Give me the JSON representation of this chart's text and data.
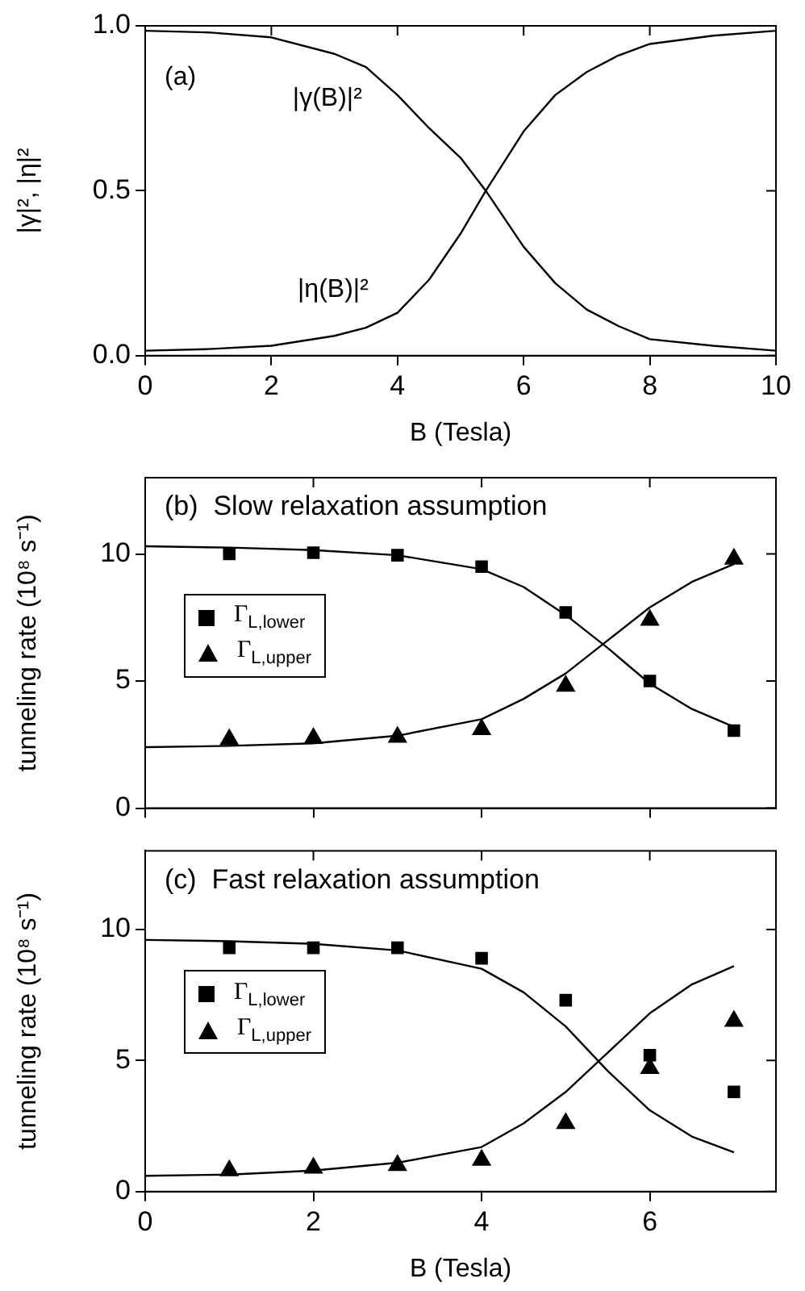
{
  "chart_data": [
    {
      "type": "line",
      "xlabel": "B (Tesla)",
      "ylabel": "|γ|², |η|²",
      "annotations": [
        "(a)"
      ],
      "xlim": [
        0,
        10
      ],
      "ylim": [
        0,
        1
      ],
      "xticks": [
        0,
        2,
        4,
        6,
        8,
        10
      ],
      "yticks": [
        {
          "value": 0,
          "label": "0.0"
        },
        0.5,
        {
          "value": 1,
          "label": "1.0"
        }
      ],
      "grid": false,
      "marker": "none",
      "line_style": "solid",
      "x": [
        0,
        1,
        2,
        3,
        3.5,
        4,
        4.5,
        5,
        5.4,
        6,
        6.5,
        7,
        7.5,
        8,
        9,
        10
      ],
      "series": [
        {
          "name": "|γ(B)|²",
          "color": "#000000",
          "values": [
            0.985,
            0.98,
            0.965,
            0.915,
            0.875,
            0.79,
            0.69,
            0.6,
            0.5,
            0.33,
            0.22,
            0.14,
            0.09,
            0.05,
            0.03,
            0.015
          ]
        },
        {
          "name": "|η(B)|²",
          "color": "#000000",
          "values": [
            0.015,
            0.02,
            0.03,
            0.06,
            0.085,
            0.13,
            0.23,
            0.37,
            0.5,
            0.68,
            0.79,
            0.86,
            0.91,
            0.945,
            0.97,
            0.985
          ]
        }
      ]
    },
    {
      "type": "scatter",
      "title": "(b)  Slow relaxation assumption",
      "ylabel": "tunneling rate (10⁸ s⁻¹)",
      "xlim": [
        0,
        7.5
      ],
      "ylim": [
        0,
        13
      ],
      "xticks": [
        0,
        2,
        4,
        6
      ],
      "yticks": [
        0,
        5,
        10
      ],
      "tick_labels": "y",
      "grid": false,
      "legend": "left",
      "series": [
        {
          "name": "Γ$_{L,lower}$",
          "color": "#000000",
          "marker": "square",
          "x": [
            1,
            2,
            3,
            4,
            5,
            6,
            7
          ],
          "values": [
            10,
            10.05,
            9.95,
            9.5,
            7.7,
            5.0,
            3.05
          ]
        },
        {
          "name": "Γ$_{L,upper}$",
          "color": "#000000",
          "marker": "triangle",
          "x": [
            1,
            2,
            3,
            4,
            5,
            6,
            7
          ],
          "values": [
            2.7,
            2.75,
            2.8,
            3.1,
            4.8,
            7.4,
            9.8
          ]
        },
        {
          "type": "line",
          "color": "#000000",
          "line_style": "solid",
          "x": [
            0,
            1,
            2,
            3,
            4,
            4.5,
            5,
            5.5,
            6,
            6.5,
            7
          ],
          "values": [
            10.3,
            10.25,
            10.15,
            9.95,
            9.4,
            8.7,
            7.6,
            6.3,
            4.9,
            3.9,
            3.2
          ]
        },
        {
          "type": "line",
          "color": "#000000",
          "line_style": "solid",
          "x": [
            0,
            1,
            2,
            3,
            4,
            4.5,
            5,
            5.5,
            6,
            6.5,
            7
          ],
          "values": [
            2.4,
            2.45,
            2.55,
            2.85,
            3.5,
            4.3,
            5.3,
            6.6,
            7.9,
            8.9,
            9.6
          ]
        }
      ]
    },
    {
      "type": "scatter",
      "title": "(c)  Fast relaxation assumption",
      "xlabel": "B (Tesla)",
      "ylabel": "tunneling rate (10⁸ s⁻¹)",
      "xlim": [
        0,
        7.5
      ],
      "ylim": [
        0,
        13
      ],
      "xticks": [
        0,
        2,
        4,
        6
      ],
      "yticks": [
        0,
        5,
        10
      ],
      "grid": false,
      "legend": "left",
      "series": [
        {
          "name": "Γ$_{L,lower}$",
          "color": "#000000",
          "marker": "square",
          "x": [
            1,
            2,
            3,
            4,
            5,
            6,
            7
          ],
          "values": [
            9.3,
            9.3,
            9.3,
            8.9,
            7.3,
            5.2,
            3.8
          ]
        },
        {
          "name": "Γ$_{L,upper}$",
          "color": "#000000",
          "marker": "triangle",
          "x": [
            1,
            2,
            3,
            4,
            5,
            6,
            7
          ],
          "values": [
            0.8,
            0.9,
            1.0,
            1.2,
            2.6,
            4.7,
            6.5
          ]
        },
        {
          "type": "line",
          "color": "#000000",
          "line_style": "solid",
          "x": [
            0,
            1,
            2,
            3,
            4,
            4.5,
            5,
            5.5,
            6,
            6.5,
            7
          ],
          "values": [
            9.6,
            9.55,
            9.45,
            9.2,
            8.5,
            7.6,
            6.3,
            4.6,
            3.1,
            2.1,
            1.5
          ]
        },
        {
          "type": "line",
          "color": "#000000",
          "line_style": "solid",
          "x": [
            0,
            1,
            2,
            3,
            4,
            4.5,
            5,
            5.5,
            6,
            6.5,
            7
          ],
          "values": [
            0.6,
            0.65,
            0.8,
            1.1,
            1.7,
            2.6,
            3.8,
            5.3,
            6.8,
            7.9,
            8.6
          ]
        }
      ]
    }
  ]
}
